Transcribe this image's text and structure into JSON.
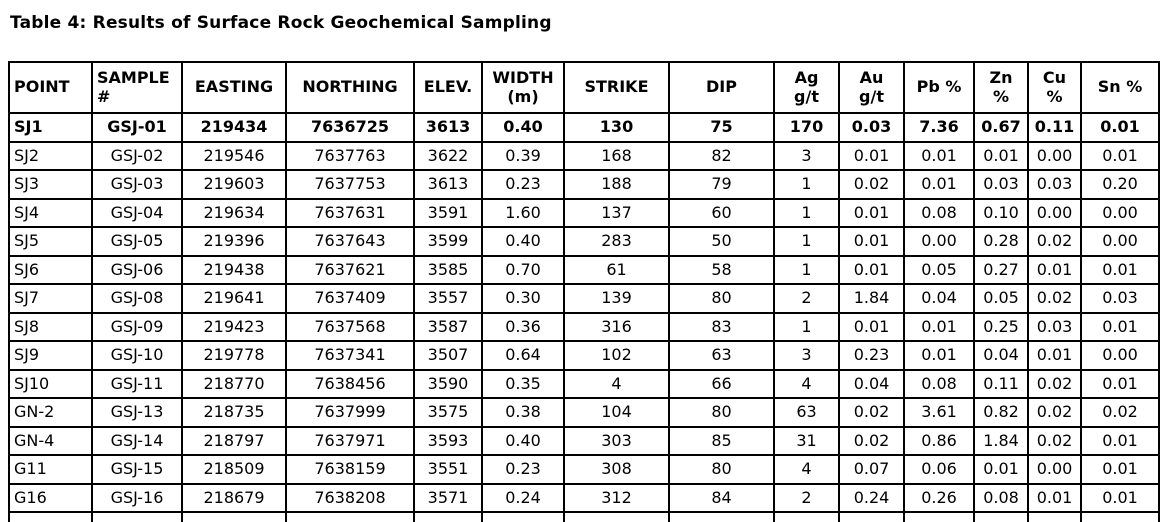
{
  "title": "Table 4: Results of Surface Rock Geochemical Sampling",
  "colors": {
    "text": "#000000",
    "border": "#000000",
    "background": "#ffffff"
  },
  "table": {
    "columns": [
      {
        "key": "point",
        "label": "POINT"
      },
      {
        "key": "sample",
        "label": "SAMPLE\n#"
      },
      {
        "key": "easting",
        "label": "EASTING"
      },
      {
        "key": "northing",
        "label": "NORTHING"
      },
      {
        "key": "elev",
        "label": "ELEV."
      },
      {
        "key": "width-m",
        "label": "WIDTH\n(m)"
      },
      {
        "key": "strike",
        "label": "STRIKE"
      },
      {
        "key": "dip",
        "label": "DIP"
      },
      {
        "key": "ag-gt",
        "label": "Ag\ng/t"
      },
      {
        "key": "au-gt",
        "label": "Au\ng/t"
      },
      {
        "key": "pb-pct",
        "label": "Pb %"
      },
      {
        "key": "zn-pct",
        "label": "Zn\n%"
      },
      {
        "key": "cu-pct",
        "label": "Cu\n%"
      },
      {
        "key": "sn-pct",
        "label": "Sn %"
      }
    ],
    "rows": [
      {
        "bold": true,
        "cells": [
          "SJ1",
          "GSJ-01",
          "219434",
          "7636725",
          "3613",
          "0.40",
          "130",
          "75",
          "170",
          "0.03",
          "7.36",
          "0.67",
          "0.11",
          "0.01"
        ]
      },
      {
        "bold": false,
        "cells": [
          "SJ2",
          "GSJ-02",
          "219546",
          "7637763",
          "3622",
          "0.39",
          "168",
          "82",
          "3",
          "0.01",
          "0.01",
          "0.01",
          "0.00",
          "0.01"
        ]
      },
      {
        "bold": false,
        "cells": [
          "SJ3",
          "GSJ-03",
          "219603",
          "7637753",
          "3613",
          "0.23",
          "188",
          "79",
          "1",
          "0.02",
          "0.01",
          "0.03",
          "0.03",
          "0.20"
        ]
      },
      {
        "bold": false,
        "cells": [
          "SJ4",
          "GSJ-04",
          "219634",
          "7637631",
          "3591",
          "1.60",
          "137",
          "60",
          "1",
          "0.01",
          "0.08",
          "0.10",
          "0.00",
          "0.00"
        ]
      },
      {
        "bold": false,
        "cells": [
          "SJ5",
          "GSJ-05",
          "219396",
          "7637643",
          "3599",
          "0.40",
          "283",
          "50",
          "1",
          "0.01",
          "0.00",
          "0.28",
          "0.02",
          "0.00"
        ]
      },
      {
        "bold": false,
        "cells": [
          "SJ6",
          "GSJ-06",
          "219438",
          "7637621",
          "3585",
          "0.70",
          "61",
          "58",
          "1",
          "0.01",
          "0.05",
          "0.27",
          "0.01",
          "0.01"
        ]
      },
      {
        "bold": false,
        "cells": [
          "SJ7",
          "GSJ-08",
          "219641",
          "7637409",
          "3557",
          "0.30",
          "139",
          "80",
          "2",
          "1.84",
          "0.04",
          "0.05",
          "0.02",
          "0.03"
        ]
      },
      {
        "bold": false,
        "cells": [
          "SJ8",
          "GSJ-09",
          "219423",
          "7637568",
          "3587",
          "0.36",
          "316",
          "83",
          "1",
          "0.01",
          "0.01",
          "0.25",
          "0.03",
          "0.01"
        ]
      },
      {
        "bold": false,
        "cells": [
          "SJ9",
          "GSJ-10",
          "219778",
          "7637341",
          "3507",
          "0.64",
          "102",
          "63",
          "3",
          "0.23",
          "0.01",
          "0.04",
          "0.01",
          "0.00"
        ]
      },
      {
        "bold": false,
        "cells": [
          "SJ10",
          "GSJ-11",
          "218770",
          "7638456",
          "3590",
          "0.35",
          "4",
          "66",
          "4",
          "0.04",
          "0.08",
          "0.11",
          "0.02",
          "0.01"
        ]
      },
      {
        "bold": false,
        "cells": [
          "GN-2",
          "GSJ-13",
          "218735",
          "7637999",
          "3575",
          "0.38",
          "104",
          "80",
          "63",
          "0.02",
          "3.61",
          "0.82",
          "0.02",
          "0.02"
        ]
      },
      {
        "bold": false,
        "cells": [
          "GN-4",
          "GSJ-14",
          "218797",
          "7637971",
          "3593",
          "0.40",
          "303",
          "85",
          "31",
          "0.02",
          "0.86",
          "1.84",
          "0.02",
          "0.01"
        ]
      },
      {
        "bold": false,
        "cells": [
          "G11",
          "GSJ-15",
          "218509",
          "7638159",
          "3551",
          "0.23",
          "308",
          "80",
          "4",
          "0.07",
          "0.06",
          "0.01",
          "0.00",
          "0.01"
        ]
      },
      {
        "bold": false,
        "cells": [
          "G16",
          "GSJ-16",
          "218679",
          "7638208",
          "3571",
          "0.24",
          "312",
          "84",
          "2",
          "0.24",
          "0.26",
          "0.08",
          "0.01",
          "0.01"
        ]
      }
    ]
  }
}
